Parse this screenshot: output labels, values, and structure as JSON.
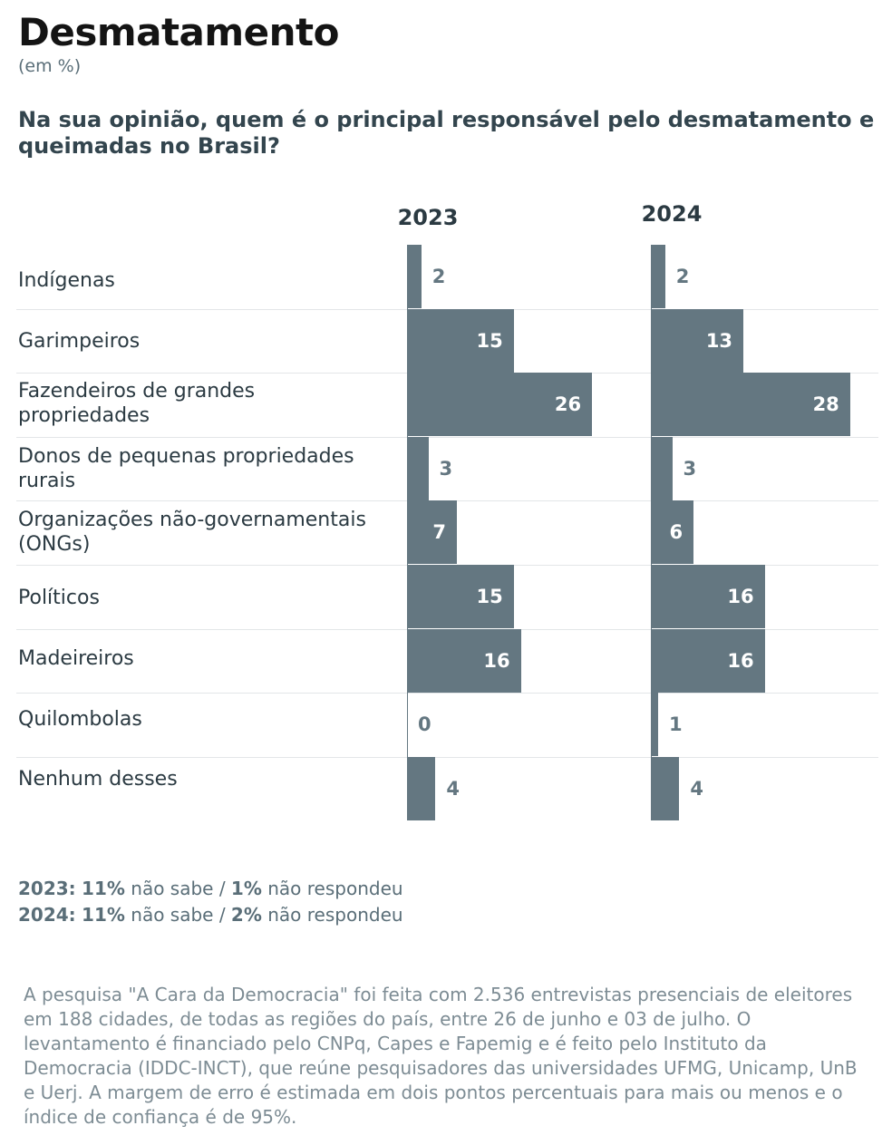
{
  "title": "Desmatamento",
  "subtitle": "(em %)",
  "question": "Na sua opinião, quem é o principal responsável pelo desmatamento e queimadas no Brasil?",
  "chart_data": {
    "type": "bar",
    "orientation": "horizontal",
    "categories": [
      "Indígenas",
      "Garimpeiros",
      "Fazendeiros de grandes propriedades",
      "Donos de pequenas propriedades rurais",
      "Organizações não-governamentais (ONGs)",
      "Políticos",
      "Madeireiros",
      "Quilombolas",
      "Nenhum desses"
    ],
    "series": [
      {
        "name": "2023",
        "values": [
          2,
          15,
          26,
          3,
          7,
          15,
          16,
          0,
          4
        ]
      },
      {
        "name": "2024",
        "values": [
          2,
          13,
          28,
          3,
          6,
          16,
          16,
          1,
          4
        ]
      }
    ],
    "bar_color": "#647781",
    "grid": false
  },
  "notes": [
    {
      "year": "2023:",
      "dk_value": "11%",
      "dk_text": " não sabe / ",
      "nr_value": "1%",
      "nr_text": " não respondeu"
    },
    {
      "year": "2024:",
      "dk_value": "11%",
      "dk_text": " não sabe / ",
      "nr_value": "2%",
      "nr_text": " não respondeu"
    }
  ],
  "footer": "A pesquisa \"A Cara da Democracia\" foi feita com 2.536 entrevistas presenciais de eleitores em 188 cidades, de todas as regiões do país, entre 26 de junho e 03 de julho. O levantamento é financiado pelo CNPq, Capes e Fapemig e é feito pelo Instituto da Democracia (IDDC-INCT), que reúne pesquisadores das universidades UFMG, Unicamp, UnB e Uerj. A margem de erro é estimada em dois pontos percentuais para mais ou menos e o índice de confiança é de 95%."
}
